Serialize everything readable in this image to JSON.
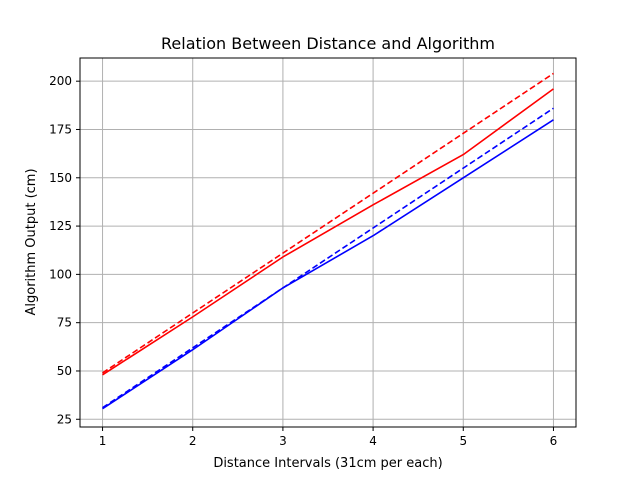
{
  "chart_data": {
    "type": "line",
    "title": "Relation Between Distance and Algorithm",
    "xlabel": "Distance Intervals (31cm per each)",
    "ylabel": "Algorithm Output (cm)",
    "x": [
      1,
      2,
      3,
      4,
      5,
      6
    ],
    "xlim": [
      0.75,
      6.25
    ],
    "ylim": [
      21,
      212
    ],
    "xticks": [
      1,
      2,
      3,
      4,
      5,
      6
    ],
    "yticks": [
      25,
      50,
      75,
      100,
      125,
      150,
      175,
      200
    ],
    "grid": true,
    "series": [
      {
        "color": "#ff0000",
        "style": "solid",
        "values": [
          48,
          78,
          109,
          136,
          162,
          196
        ]
      },
      {
        "color": "#ff0000",
        "style": "dashed",
        "values": [
          49,
          80,
          111,
          142,
          173,
          204
        ]
      },
      {
        "color": "#0000ff",
        "style": "solid",
        "values": [
          30.5,
          61,
          93,
          120,
          150,
          180
        ]
      },
      {
        "color": "#0000ff",
        "style": "dashed",
        "values": [
          31,
          62,
          93,
          124,
          155,
          186
        ]
      }
    ]
  }
}
